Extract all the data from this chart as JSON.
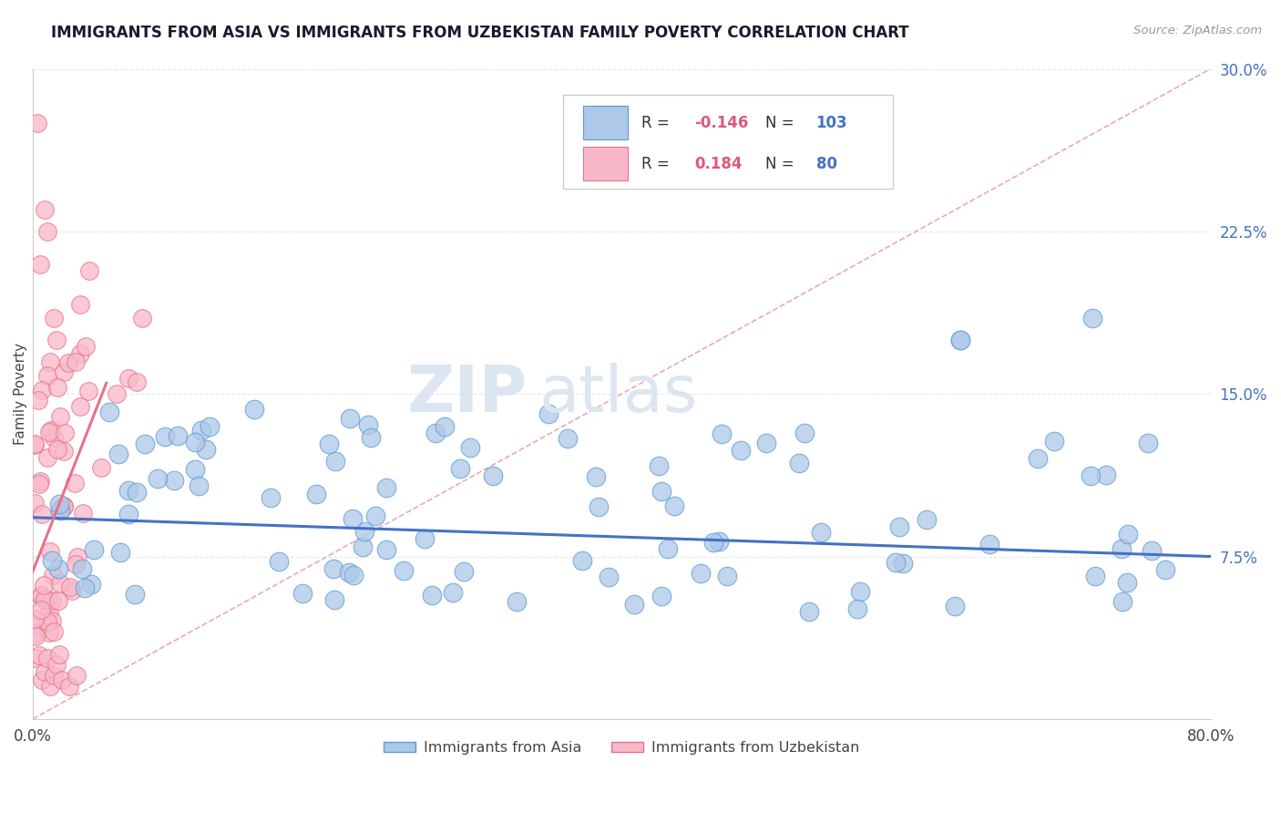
{
  "title": "IMMIGRANTS FROM ASIA VS IMMIGRANTS FROM UZBEKISTAN FAMILY POVERTY CORRELATION CHART",
  "source": "Source: ZipAtlas.com",
  "ylabel": "Family Poverty",
  "xlim": [
    0.0,
    0.8
  ],
  "ylim": [
    0.0,
    0.3
  ],
  "legend_asia_label": "Immigrants from Asia",
  "legend_uzb_label": "Immigrants from Uzbekistan",
  "legend_R_asia": "-0.146",
  "legend_N_asia": "103",
  "legend_R_uzb": "0.184",
  "legend_N_uzb": "80",
  "color_asia_fill": "#adc8e8",
  "color_asia_edge": "#5b9bd5",
  "color_uzb_fill": "#f9b8c8",
  "color_uzb_edge": "#e8708a",
  "color_asia_line": "#4472c4",
  "color_uzb_line": "#e8708a",
  "color_diagonal": "#e8a0b0",
  "background_color": "#ffffff",
  "title_color": "#1a1a2e",
  "title_fontsize": 12,
  "watermark": "ZIPatlas",
  "watermark_color": "#dce6f0",
  "ytick_color": "#4472c4",
  "xtick_color": "#444444",
  "grid_color": "#e8e8e8"
}
